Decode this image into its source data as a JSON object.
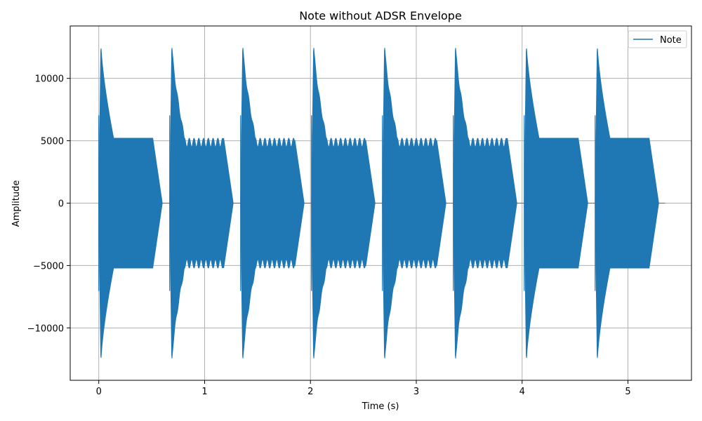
{
  "chart_data": {
    "type": "line",
    "title": "Note without ADSR Envelope",
    "xlabel": "Time (s)",
    "ylabel": "Amplitude",
    "xlim": [
      -0.27,
      5.6
    ],
    "ylim": [
      -14200,
      14200
    ],
    "xticks": [
      0,
      1,
      2,
      3,
      4,
      5
    ],
    "xtick_labels": [
      "0",
      "1",
      "2",
      "3",
      "4",
      "5"
    ],
    "yticks": [
      -10000,
      -5000,
      0,
      5000,
      10000
    ],
    "ytick_labels": [
      "−10000",
      "−5000",
      "0",
      "5000",
      "10000"
    ],
    "grid": true,
    "legend_position": "top-right",
    "series": [
      {
        "name": "Note",
        "color": "#1f77b4",
        "description_points": {
          "notes": [
            {
              "start": 0.0,
              "attack_peak_time": 0.02,
              "peak": 12800,
              "sustain_start": 0.14,
              "sustain_end": 0.51,
              "end": 0.6,
              "sustain_level": 5200,
              "tremolo": false
            },
            {
              "start": 0.67,
              "attack_peak_time": 0.69,
              "peak": 12800,
              "sustain_start": 0.81,
              "sustain_end": 1.18,
              "end": 1.27,
              "sustain_level": 5200,
              "tremolo": true
            },
            {
              "start": 1.34,
              "attack_peak_time": 1.36,
              "peak": 12800,
              "sustain_start": 1.48,
              "sustain_end": 1.85,
              "end": 1.94,
              "sustain_level": 5200,
              "tremolo": true
            },
            {
              "start": 2.01,
              "attack_peak_time": 2.03,
              "peak": 12800,
              "sustain_start": 2.15,
              "sustain_end": 2.52,
              "end": 2.61,
              "sustain_level": 5200,
              "tremolo": true
            },
            {
              "start": 2.68,
              "attack_peak_time": 2.7,
              "peak": 12800,
              "sustain_start": 2.82,
              "sustain_end": 3.19,
              "end": 3.28,
              "sustain_level": 5200,
              "tremolo": true
            },
            {
              "start": 3.35,
              "attack_peak_time": 3.37,
              "peak": 12800,
              "sustain_start": 3.49,
              "sustain_end": 3.86,
              "end": 3.95,
              "sustain_level": 5200,
              "tremolo": true
            },
            {
              "start": 4.02,
              "attack_peak_time": 4.04,
              "peak": 12800,
              "sustain_start": 4.16,
              "sustain_end": 4.53,
              "end": 4.62,
              "sustain_level": 5200,
              "tremolo": false
            },
            {
              "start": 4.69,
              "attack_peak_time": 4.71,
              "peak": 12800,
              "sustain_start": 4.83,
              "sustain_end": 5.2,
              "end": 5.29,
              "sustain_level": 5200,
              "tremolo": false
            }
          ],
          "silence_after": 5.35
        }
      }
    ]
  }
}
